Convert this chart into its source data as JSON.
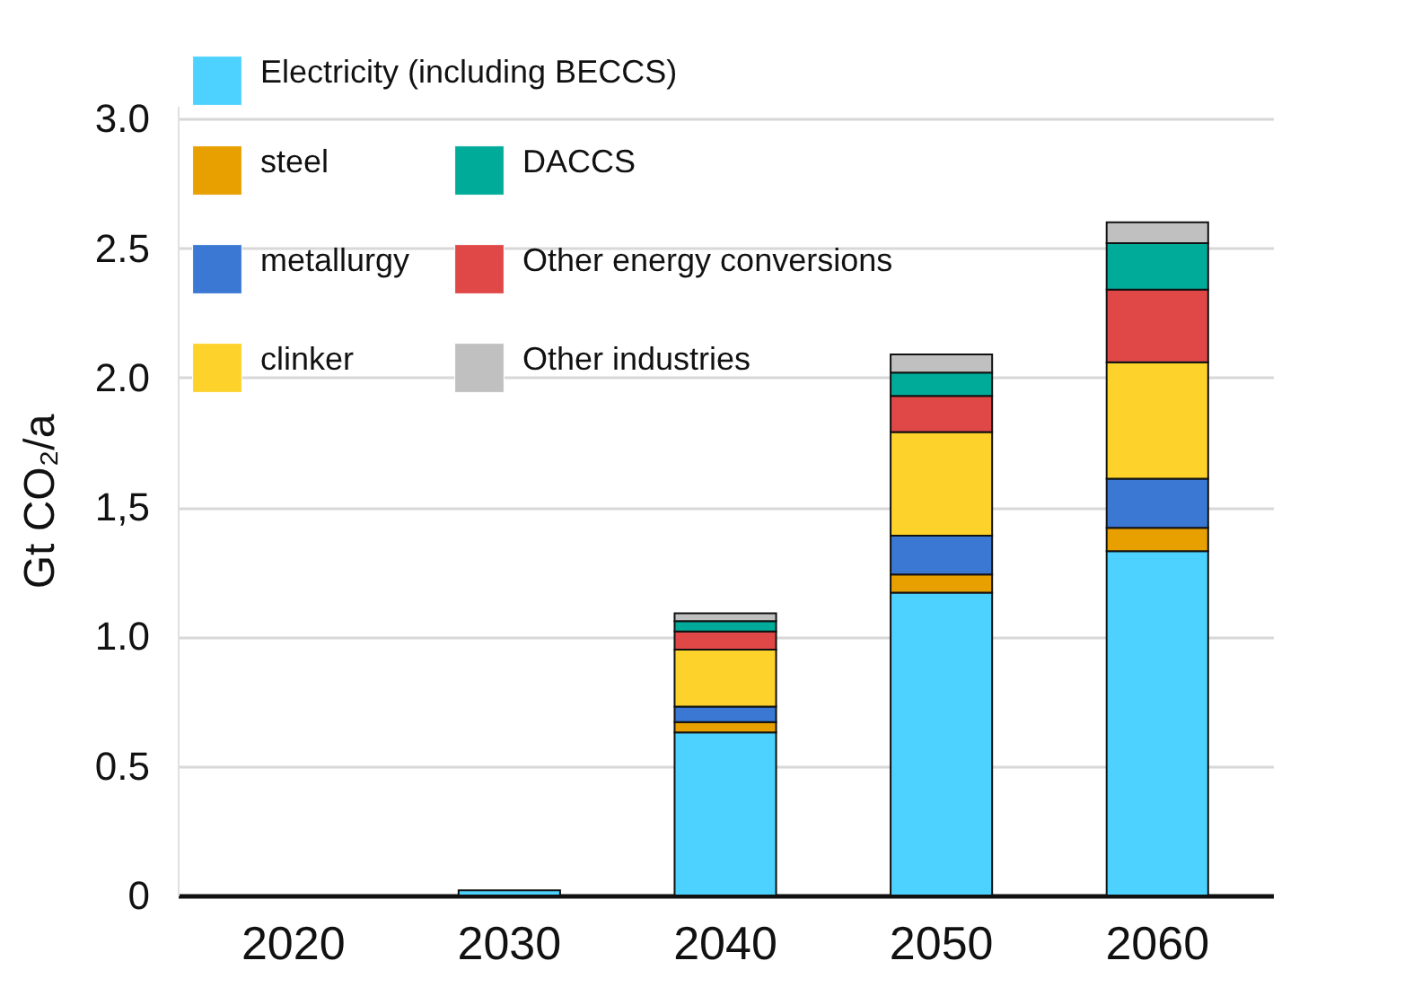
{
  "chart_data": {
    "type": "bar",
    "stacked": true,
    "ylabel": "Gt CO₂/a",
    "categories": [
      "2020",
      "2030",
      "2040",
      "2050",
      "2060"
    ],
    "series": [
      {
        "name": "Electricity (including BECCS)",
        "color": "#4dd2ff",
        "values": [
          null,
          0.02,
          0.63,
          1.17,
          1.33
        ]
      },
      {
        "name": "steel",
        "color": "#e8a000",
        "values": [
          null,
          null,
          0.04,
          0.07,
          0.09
        ]
      },
      {
        "name": "metallurgy",
        "color": "#3a78d4",
        "values": [
          null,
          null,
          0.06,
          0.15,
          0.19
        ]
      },
      {
        "name": "clinker",
        "color": "#fdd22a",
        "values": [
          null,
          null,
          0.22,
          0.4,
          0.45
        ]
      },
      {
        "name": "Other energy conversions",
        "color": "#e04848",
        "values": [
          null,
          null,
          0.07,
          0.14,
          0.28
        ]
      },
      {
        "name": "DACCS",
        "color": "#00ab9a",
        "values": [
          null,
          null,
          0.04,
          0.09,
          0.18
        ]
      },
      {
        "name": "Other industries",
        "color": "#c0c0c0",
        "values": [
          null,
          null,
          0.03,
          0.07,
          0.08
        ]
      }
    ],
    "ylim": [
      0,
      3.05
    ],
    "yticks": [
      0,
      0.5,
      {
        "value": 1,
        "label": "1.0"
      },
      {
        "value": 1.5,
        "label": "1,5"
      },
      {
        "value": 2,
        "label": "2.0"
      },
      2.5,
      {
        "value": 3,
        "label": "3.0"
      }
    ],
    "grid": "y",
    "legend": "top left"
  }
}
